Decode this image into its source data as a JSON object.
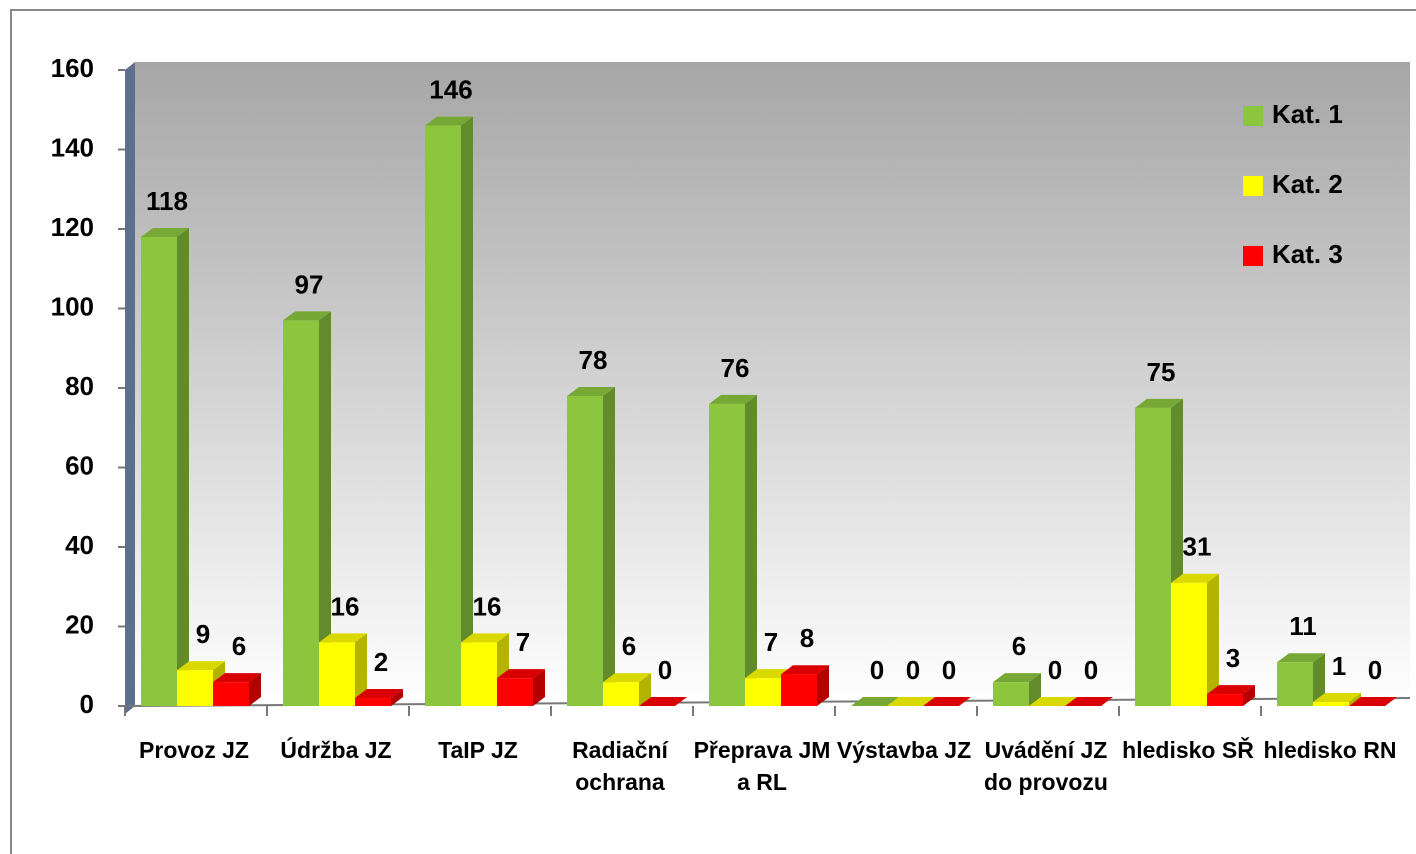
{
  "chart_data": {
    "type": "bar",
    "categories": [
      "Provoz JZ",
      "Údržba JZ",
      "TaIP JZ",
      "Radiační ochrana",
      "Přeprava JM a RL",
      "Výstavba JZ",
      "Uvádění JZ do provozu",
      "hledisko SŘ",
      "hledisko RN"
    ],
    "series": [
      {
        "name": "Kat. 1",
        "color": "#8cc63f",
        "values": [
          118,
          97,
          146,
          78,
          76,
          0,
          6,
          75,
          11
        ]
      },
      {
        "name": "Kat. 2",
        "color": "#ffff00",
        "values": [
          9,
          16,
          16,
          6,
          7,
          0,
          0,
          31,
          1
        ]
      },
      {
        "name": "Kat. 3",
        "color": "#ff0000",
        "values": [
          6,
          2,
          7,
          0,
          8,
          0,
          0,
          3,
          0
        ]
      }
    ],
    "ylim": [
      0,
      160
    ],
    "yticks": [
      0,
      20,
      40,
      60,
      80,
      100,
      120,
      140,
      160
    ],
    "legend": "top-right"
  }
}
